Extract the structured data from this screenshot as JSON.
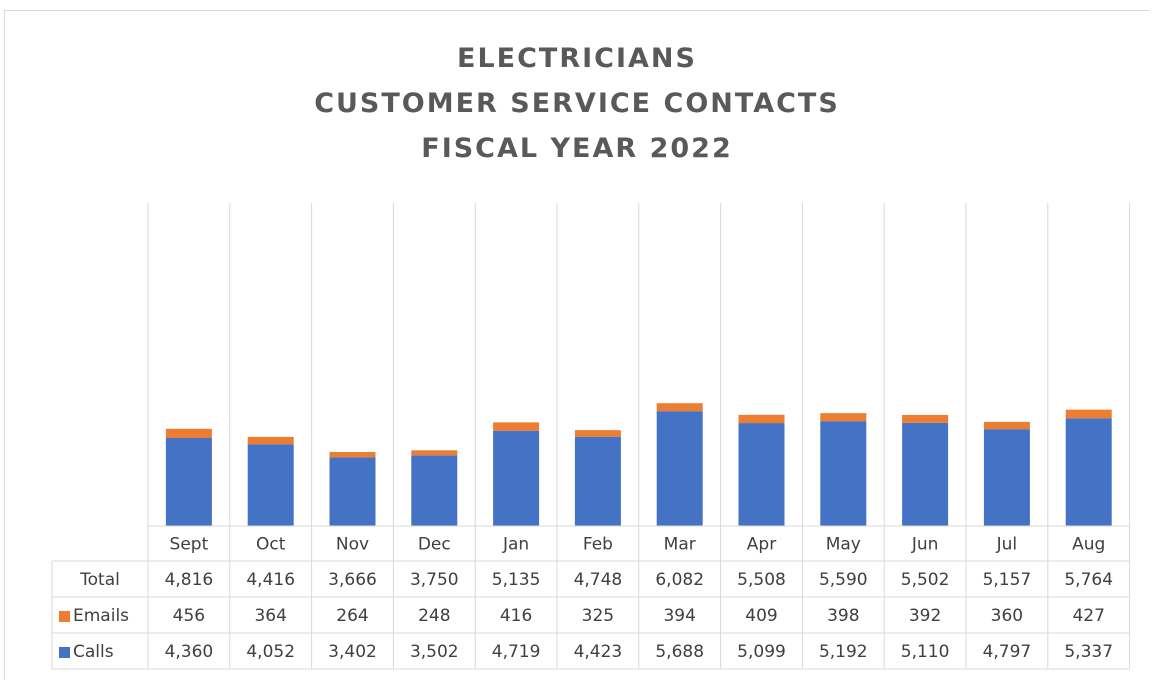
{
  "chart_data": {
    "type": "bar",
    "stacked": true,
    "title_lines": [
      "ELECTRICIANS",
      "CUSTOMER SERVICE CONTACTS",
      "FISCAL YEAR 2022"
    ],
    "categories": [
      "Sept",
      "Oct",
      "Nov",
      "Dec",
      "Jan",
      "Feb",
      "Mar",
      "Apr",
      "May",
      "Jun",
      "Jul",
      "Aug"
    ],
    "series": [
      {
        "name": "Calls",
        "color": "#4472c4",
        "values": [
          4360,
          4052,
          3402,
          3502,
          4719,
          4423,
          5688,
          5099,
          5192,
          5110,
          4797,
          5337
        ]
      },
      {
        "name": "Emails",
        "color": "#ed7d31",
        "values": [
          456,
          364,
          264,
          248,
          416,
          325,
          394,
          409,
          398,
          392,
          360,
          427
        ]
      }
    ],
    "data_table": {
      "rows": [
        {
          "label": "Total",
          "values": [
            "4,816",
            "4,416",
            "3,666",
            "3,750",
            "5,135",
            "4,748",
            "6,082",
            "5,508",
            "5,590",
            "5,502",
            "5,157",
            "5,764"
          ]
        },
        {
          "label": "Emails",
          "legend_color": "#ed7d31",
          "values": [
            "456",
            "364",
            "264",
            "248",
            "416",
            "325",
            "394",
            "409",
            "398",
            "392",
            "360",
            "427"
          ]
        },
        {
          "label": "Calls",
          "legend_color": "#4472c4",
          "values": [
            "4,360",
            "4,052",
            "3,402",
            "3,502",
            "4,719",
            "4,423",
            "5,688",
            "5,099",
            "5,192",
            "5,110",
            "4,797",
            "5,337"
          ]
        }
      ]
    },
    "ylim": [
      0,
      16000
    ],
    "grid": true,
    "legend": "data-table"
  }
}
